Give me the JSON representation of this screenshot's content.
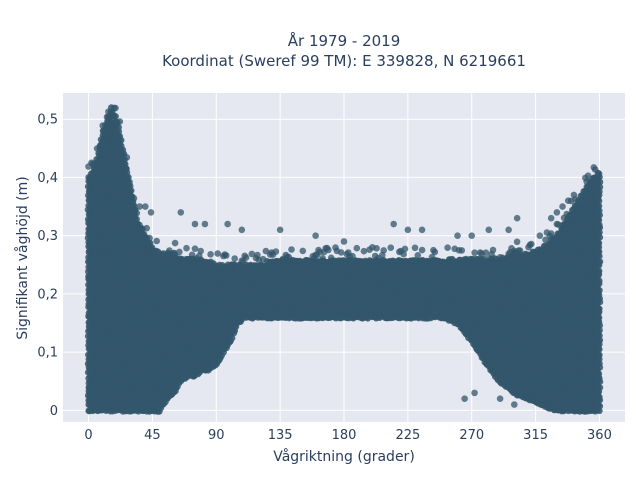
{
  "chart_data": {
    "type": "scatter",
    "title_line1": "År 1979 - 2019",
    "title_line2": "Koordinat (Sweref 99 TM): E 339828, N 6219661",
    "xlabel": "Vågriktning (grader)",
    "ylabel": "Signifikant våghöjd (m)",
    "xlim": [
      -18,
      378
    ],
    "ylim": [
      -0.02,
      0.545
    ],
    "xticks": [
      0,
      45,
      90,
      135,
      180,
      225,
      270,
      315,
      360
    ],
    "xtick_labels": [
      "0",
      "45",
      "90",
      "135",
      "180",
      "225",
      "270",
      "315",
      "360"
    ],
    "yticks": [
      0,
      0.1,
      0.2,
      0.3,
      0.4,
      0.5
    ],
    "ytick_labels": [
      "0",
      "0,1",
      "0,2",
      "0,3",
      "0,4",
      "0,5"
    ],
    "grid": true,
    "legend": "none",
    "marker_color": "#33566b",
    "plot_bg": "#e5e8f0",
    "envelope": {
      "x": [
        0,
        5,
        10,
        15,
        16,
        20,
        25,
        30,
        35,
        40,
        45,
        50,
        55,
        60,
        65,
        70,
        75,
        80,
        85,
        90,
        95,
        100,
        105,
        110,
        115,
        120,
        130,
        140,
        150,
        160,
        170,
        180,
        190,
        200,
        210,
        220,
        230,
        240,
        250,
        260,
        270,
        280,
        290,
        300,
        310,
        320,
        330,
        335,
        340,
        345,
        350,
        355,
        360
      ],
      "upper": [
        0.4,
        0.42,
        0.48,
        0.51,
        0.52,
        0.5,
        0.44,
        0.38,
        0.32,
        0.3,
        0.28,
        0.27,
        0.27,
        0.27,
        0.26,
        0.26,
        0.26,
        0.26,
        0.26,
        0.25,
        0.25,
        0.25,
        0.25,
        0.25,
        0.25,
        0.25,
        0.26,
        0.26,
        0.26,
        0.26,
        0.26,
        0.26,
        0.26,
        0.26,
        0.26,
        0.26,
        0.26,
        0.26,
        0.26,
        0.26,
        0.26,
        0.26,
        0.26,
        0.27,
        0.27,
        0.28,
        0.3,
        0.32,
        0.34,
        0.36,
        0.38,
        0.4,
        0.41
      ],
      "lower": [
        0.0,
        0.0,
        0.0,
        0.0,
        0.0,
        0.0,
        0.0,
        0.0,
        0.0,
        0.0,
        0.0,
        0.0,
        0.02,
        0.03,
        0.05,
        0.06,
        0.06,
        0.07,
        0.07,
        0.08,
        0.1,
        0.12,
        0.15,
        0.16,
        0.16,
        0.16,
        0.16,
        0.16,
        0.16,
        0.16,
        0.16,
        0.16,
        0.16,
        0.16,
        0.16,
        0.16,
        0.16,
        0.16,
        0.16,
        0.15,
        0.12,
        0.08,
        0.05,
        0.03,
        0.02,
        0.01,
        0.0,
        0.0,
        0.0,
        0.0,
        0.0,
        0.0,
        0.0
      ]
    },
    "outliers": [
      [
        65,
        0.34
      ],
      [
        75,
        0.32
      ],
      [
        82,
        0.32
      ],
      [
        98,
        0.32
      ],
      [
        108,
        0.31
      ],
      [
        135,
        0.31
      ],
      [
        160,
        0.3
      ],
      [
        180,
        0.29
      ],
      [
        200,
        0.28
      ],
      [
        215,
        0.32
      ],
      [
        225,
        0.31
      ],
      [
        235,
        0.31
      ],
      [
        260,
        0.3
      ],
      [
        270,
        0.3
      ],
      [
        282,
        0.31
      ],
      [
        296,
        0.31
      ],
      [
        302,
        0.33
      ],
      [
        318,
        0.3
      ],
      [
        326,
        0.33
      ],
      [
        330,
        0.34
      ],
      [
        334,
        0.35
      ],
      [
        338,
        0.36
      ],
      [
        342,
        0.37
      ],
      [
        36,
        0.35
      ],
      [
        40,
        0.35
      ],
      [
        44,
        0.34
      ],
      [
        265,
        0.02
      ],
      [
        272,
        0.03
      ],
      [
        290,
        0.02
      ],
      [
        300,
        0.01
      ],
      [
        312,
        0.02
      ],
      [
        322,
        0.01
      ]
    ]
  }
}
